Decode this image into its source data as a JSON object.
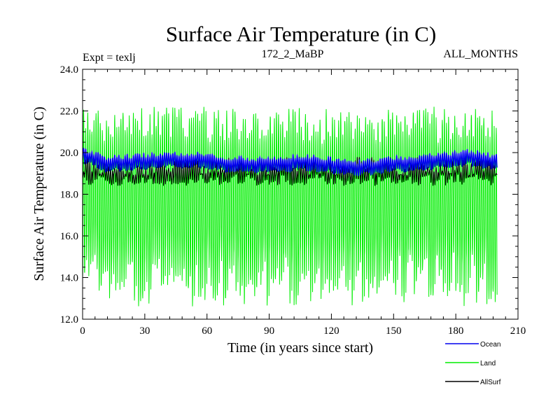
{
  "chart_data": {
    "type": "line",
    "title": "Surface Air Temperature (in C)",
    "experiment_label": "Expt = texlj",
    "subtitle": "172_2_MaBP",
    "period_label": "ALL_MONTHS",
    "xlabel": "Time (in years since start)",
    "ylabel": "Surface Air Temperature (in C)",
    "xlim": [
      0,
      210
    ],
    "ylim": [
      12.0,
      24.0
    ],
    "x_ticks": [
      0,
      30,
      60,
      90,
      120,
      150,
      180,
      210
    ],
    "x_tick_labels": [
      "0",
      "30",
      "60",
      "90",
      "120",
      "150",
      "180",
      "210"
    ],
    "y_ticks": [
      12,
      14,
      16,
      18,
      20,
      22,
      24
    ],
    "y_tick_labels": [
      "12.0",
      "14.0",
      "16.0",
      "18.0",
      "20.0",
      "22.0",
      "24.0"
    ],
    "x_data_range": [
      0,
      199
    ],
    "samples_per_year": 12,
    "series": [
      {
        "name": "Land",
        "legend": "Land",
        "color": "#00ee00",
        "kind": "seasonal-monthly",
        "annual_max_range": [
          20.6,
          22.2
        ],
        "annual_min_range": [
          12.6,
          15.2
        ],
        "peak_max": [
          169,
          22.2
        ],
        "trough_min": [
          135,
          12.6
        ]
      },
      {
        "name": "AllSurf",
        "legend": "AllSurf",
        "color": "#000000",
        "kind": "seasonal-monthly",
        "annual_max_range": [
          18.9,
          19.8
        ],
        "annual_min_range": [
          18.4,
          19.0
        ]
      },
      {
        "name": "Ocean",
        "legend": "Ocean",
        "color": "#0000ee",
        "kind": "seasonal-monthly",
        "annual_max_range": [
          19.6,
          20.2
        ],
        "annual_min_range": [
          19.0,
          19.5
        ],
        "trend_points": [
          [
            0,
            19.9
          ],
          [
            10,
            19.5
          ],
          [
            30,
            19.6
          ],
          [
            40,
            19.7
          ],
          [
            60,
            19.65
          ],
          [
            70,
            19.45
          ],
          [
            90,
            19.45
          ],
          [
            110,
            19.55
          ],
          [
            130,
            19.25
          ],
          [
            150,
            19.45
          ],
          [
            170,
            19.6
          ],
          [
            185,
            19.8
          ],
          [
            199,
            19.55
          ]
        ]
      }
    ],
    "legend_position": "bottom-right"
  }
}
